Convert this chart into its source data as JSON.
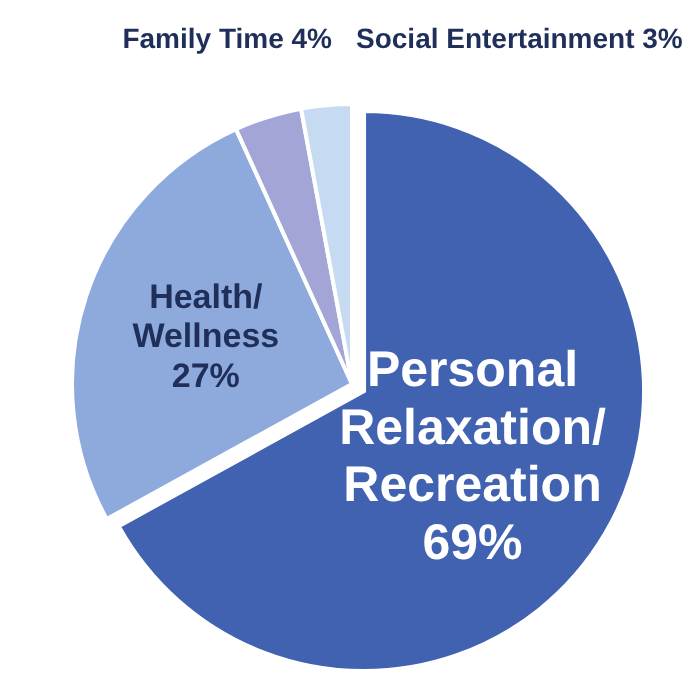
{
  "chart_data": {
    "type": "pie",
    "categories": [
      "Personal Relaxation/ Recreation",
      "Health/ Wellness",
      "Family Time",
      "Social Entertainment"
    ],
    "values": [
      69,
      27,
      4,
      3
    ],
    "value_labels": [
      "69%",
      "27%",
      "4%",
      "3%"
    ],
    "colors": [
      "#4062b0",
      "#8eaadc",
      "#a3a5d6",
      "#c6daf2"
    ]
  }
}
